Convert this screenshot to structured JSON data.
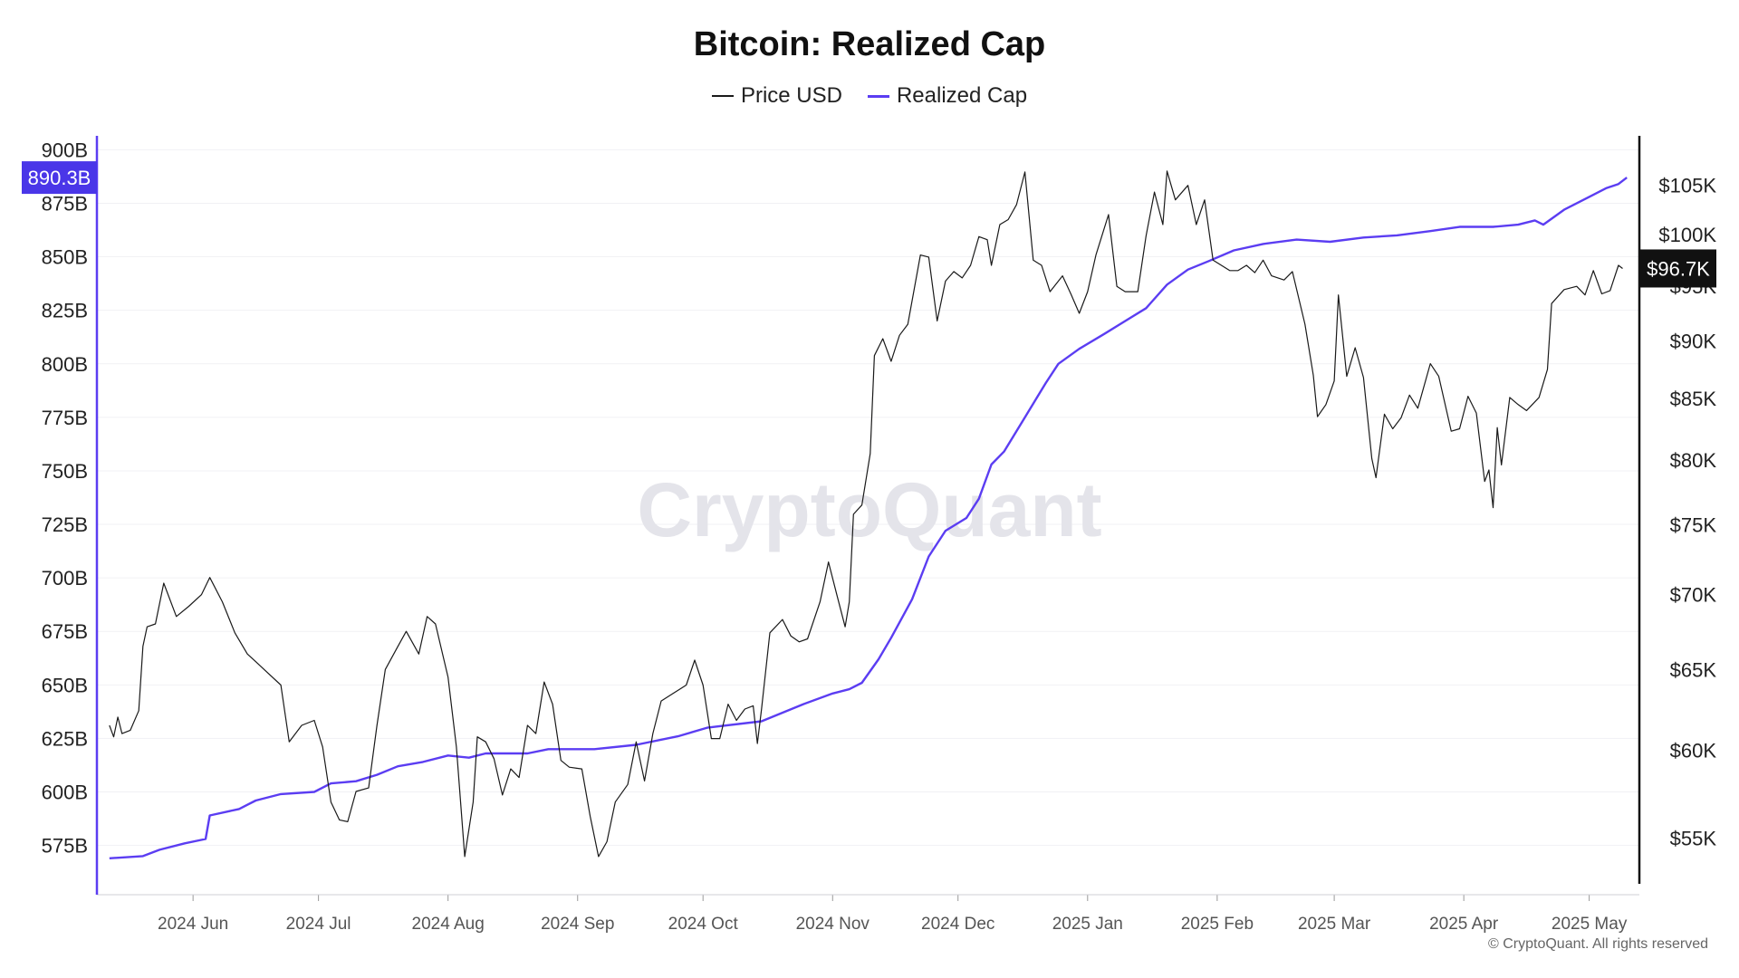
{
  "title": "Bitcoin: Realized Cap",
  "legend": {
    "price_label": "Price USD",
    "cap_label": "Realized Cap"
  },
  "colors": {
    "price": "#1a1a1a",
    "cap": "#5b3df2",
    "cap_badge": "#4a36e8",
    "price_badge": "#111111"
  },
  "watermark": "CryptoQuant",
  "copyright": "© CryptoQuant. All rights reserved",
  "chart_data": {
    "type": "line",
    "title": "Bitcoin: Realized Cap",
    "xlabel": "",
    "x_ticks": [
      "2024 Jun",
      "2024 Jul",
      "2024 Aug",
      "2024 Sep",
      "2024 Oct",
      "2024 Nov",
      "2024 Dec",
      "2025 Jan",
      "2025 Feb",
      "2025 Mar",
      "2025 Apr",
      "2025 May"
    ],
    "left_axis": {
      "ticks": [
        "575B",
        "600B",
        "625B",
        "650B",
        "675B",
        "700B",
        "725B",
        "750B",
        "775B",
        "800B",
        "825B",
        "850B",
        "875B",
        "900B"
      ],
      "min": 552,
      "max": 901
    },
    "right_axis": {
      "ticks": [
        "$55K",
        "$60K",
        "$65K",
        "$70K",
        "$75K",
        "$80K",
        "$85K",
        "$90K",
        "$95K",
        "$100K",
        "$105K"
      ]
    },
    "current_cap_label": "890.3B",
    "current_price_label": "$96.7K",
    "series": [
      {
        "name": "Realized Cap",
        "axis": "left",
        "points": [
          [
            "2024-05-12",
            569
          ],
          [
            "2024-05-20",
            570
          ],
          [
            "2024-05-24",
            573
          ],
          [
            "2024-05-30",
            576
          ],
          [
            "2024-06-04",
            578
          ],
          [
            "2024-06-05",
            589
          ],
          [
            "2024-06-12",
            592
          ],
          [
            "2024-06-16",
            596
          ],
          [
            "2024-06-22",
            599
          ],
          [
            "2024-06-30",
            600
          ],
          [
            "2024-07-04",
            604
          ],
          [
            "2024-07-10",
            605
          ],
          [
            "2024-07-15",
            608
          ],
          [
            "2024-07-20",
            612
          ],
          [
            "2024-07-26",
            614
          ],
          [
            "2024-08-01",
            617
          ],
          [
            "2024-08-06",
            616
          ],
          [
            "2024-08-10",
            618
          ],
          [
            "2024-08-20",
            618
          ],
          [
            "2024-08-25",
            620
          ],
          [
            "2024-09-05",
            620
          ],
          [
            "2024-09-15",
            622
          ],
          [
            "2024-09-25",
            626
          ],
          [
            "2024-10-02",
            630
          ],
          [
            "2024-10-15",
            633
          ],
          [
            "2024-10-25",
            641
          ],
          [
            "2024-11-01",
            646
          ],
          [
            "2024-11-05",
            648
          ],
          [
            "2024-11-08",
            651
          ],
          [
            "2024-11-12",
            662
          ],
          [
            "2024-11-15",
            672
          ],
          [
            "2024-11-20",
            690
          ],
          [
            "2024-11-24",
            710
          ],
          [
            "2024-11-28",
            722
          ],
          [
            "2024-12-03",
            728
          ],
          [
            "2024-12-06",
            737
          ],
          [
            "2024-12-09",
            753
          ],
          [
            "2024-12-12",
            759
          ],
          [
            "2024-12-17",
            775
          ],
          [
            "2024-12-22",
            791
          ],
          [
            "2024-12-25",
            800
          ],
          [
            "2024-12-30",
            807
          ],
          [
            "2025-01-05",
            814
          ],
          [
            "2025-01-10",
            820
          ],
          [
            "2025-01-15",
            826
          ],
          [
            "2025-01-20",
            837
          ],
          [
            "2025-01-25",
            844
          ],
          [
            "2025-01-30",
            848
          ],
          [
            "2025-02-05",
            853
          ],
          [
            "2025-02-12",
            856
          ],
          [
            "2025-02-20",
            858
          ],
          [
            "2025-02-28",
            857
          ],
          [
            "2025-03-08",
            859
          ],
          [
            "2025-03-16",
            860
          ],
          [
            "2025-03-24",
            862
          ],
          [
            "2025-03-31",
            864
          ],
          [
            "2025-04-08",
            864
          ],
          [
            "2025-04-14",
            865
          ],
          [
            "2025-04-18",
            867
          ],
          [
            "2025-04-20",
            865
          ],
          [
            "2025-04-25",
            872
          ],
          [
            "2025-05-01",
            878
          ],
          [
            "2025-05-05",
            882
          ],
          [
            "2025-05-08",
            884
          ],
          [
            "2025-05-10",
            887
          ]
        ]
      },
      {
        "name": "Price USD",
        "axis": "right",
        "points": [
          [
            "2024-05-12",
            61500
          ],
          [
            "2024-05-13",
            60800
          ],
          [
            "2024-05-14",
            62000
          ],
          [
            "2024-05-15",
            61000
          ],
          [
            "2024-05-17",
            61200
          ],
          [
            "2024-05-19",
            62400
          ],
          [
            "2024-05-20",
            66500
          ],
          [
            "2024-05-21",
            67800
          ],
          [
            "2024-05-23",
            68000
          ],
          [
            "2024-05-25",
            70800
          ],
          [
            "2024-05-28",
            68500
          ],
          [
            "2024-05-31",
            69200
          ],
          [
            "2024-06-03",
            70000
          ],
          [
            "2024-06-05",
            71200
          ],
          [
            "2024-06-08",
            69500
          ],
          [
            "2024-06-11",
            67400
          ],
          [
            "2024-06-14",
            66000
          ],
          [
            "2024-06-16",
            65500
          ],
          [
            "2024-06-18",
            65000
          ],
          [
            "2024-06-22",
            64000
          ],
          [
            "2024-06-24",
            60500
          ],
          [
            "2024-06-27",
            61500
          ],
          [
            "2024-06-30",
            61800
          ],
          [
            "2024-07-02",
            60200
          ],
          [
            "2024-07-04",
            57000
          ],
          [
            "2024-07-06",
            56000
          ],
          [
            "2024-07-08",
            55900
          ],
          [
            "2024-07-10",
            57600
          ],
          [
            "2024-07-13",
            57800
          ],
          [
            "2024-07-15",
            61500
          ],
          [
            "2024-07-17",
            65000
          ],
          [
            "2024-07-20",
            66500
          ],
          [
            "2024-07-22",
            67500
          ],
          [
            "2024-07-25",
            66000
          ],
          [
            "2024-07-27",
            68500
          ],
          [
            "2024-07-29",
            68000
          ],
          [
            "2024-08-01",
            64500
          ],
          [
            "2024-08-03",
            60200
          ],
          [
            "2024-08-05",
            54000
          ],
          [
            "2024-08-07",
            57000
          ],
          [
            "2024-08-08",
            60800
          ],
          [
            "2024-08-10",
            60500
          ],
          [
            "2024-08-12",
            59500
          ],
          [
            "2024-08-14",
            57400
          ],
          [
            "2024-08-16",
            58900
          ],
          [
            "2024-08-18",
            58400
          ],
          [
            "2024-08-20",
            61500
          ],
          [
            "2024-08-22",
            61000
          ],
          [
            "2024-08-24",
            64200
          ],
          [
            "2024-08-26",
            62800
          ],
          [
            "2024-08-28",
            59400
          ],
          [
            "2024-08-30",
            59000
          ],
          [
            "2024-09-02",
            58900
          ],
          [
            "2024-09-04",
            56200
          ],
          [
            "2024-09-06",
            54000
          ],
          [
            "2024-09-08",
            54800
          ],
          [
            "2024-09-10",
            57000
          ],
          [
            "2024-09-13",
            58000
          ],
          [
            "2024-09-15",
            60500
          ],
          [
            "2024-09-17",
            58200
          ],
          [
            "2024-09-19",
            61000
          ],
          [
            "2024-09-21",
            63000
          ],
          [
            "2024-09-24",
            63500
          ],
          [
            "2024-09-27",
            64000
          ],
          [
            "2024-09-29",
            65600
          ],
          [
            "2024-10-01",
            64000
          ],
          [
            "2024-10-03",
            60700
          ],
          [
            "2024-10-05",
            60700
          ],
          [
            "2024-10-07",
            62800
          ],
          [
            "2024-10-09",
            61800
          ],
          [
            "2024-10-11",
            62500
          ],
          [
            "2024-10-13",
            62700
          ],
          [
            "2024-10-14",
            60400
          ],
          [
            "2024-10-15",
            62500
          ],
          [
            "2024-10-17",
            67400
          ],
          [
            "2024-10-20",
            68300
          ],
          [
            "2024-10-22",
            67200
          ],
          [
            "2024-10-24",
            66800
          ],
          [
            "2024-10-26",
            67000
          ],
          [
            "2024-10-29",
            69500
          ],
          [
            "2024-10-31",
            72300
          ],
          [
            "2024-11-02",
            70000
          ],
          [
            "2024-11-04",
            67800
          ],
          [
            "2024-11-05",
            69500
          ],
          [
            "2024-11-06",
            75800
          ],
          [
            "2024-11-08",
            76500
          ],
          [
            "2024-11-10",
            80500
          ],
          [
            "2024-11-11",
            88700
          ],
          [
            "2024-11-13",
            90200
          ],
          [
            "2024-11-15",
            88200
          ],
          [
            "2024-11-17",
            90500
          ],
          [
            "2024-11-19",
            91500
          ],
          [
            "2024-11-22",
            98000
          ],
          [
            "2024-11-24",
            97800
          ],
          [
            "2024-11-26",
            91800
          ],
          [
            "2024-11-28",
            95500
          ],
          [
            "2024-11-30",
            96400
          ],
          [
            "2024-12-02",
            95800
          ],
          [
            "2024-12-04",
            97000
          ],
          [
            "2024-12-06",
            99800
          ],
          [
            "2024-12-08",
            99500
          ],
          [
            "2024-12-09",
            97000
          ],
          [
            "2024-12-11",
            101000
          ],
          [
            "2024-12-13",
            101500
          ],
          [
            "2024-12-15",
            103000
          ],
          [
            "2024-12-17",
            106400
          ],
          [
            "2024-12-19",
            97500
          ],
          [
            "2024-12-21",
            97000
          ],
          [
            "2024-12-23",
            94500
          ],
          [
            "2024-12-26",
            96000
          ],
          [
            "2024-12-28",
            94300
          ],
          [
            "2024-12-30",
            92500
          ],
          [
            "2025-01-01",
            94500
          ],
          [
            "2025-01-03",
            98000
          ],
          [
            "2025-01-06",
            102000
          ],
          [
            "2025-01-08",
            95000
          ],
          [
            "2025-01-10",
            94500
          ],
          [
            "2025-01-13",
            94500
          ],
          [
            "2025-01-15",
            99900
          ],
          [
            "2025-01-17",
            104300
          ],
          [
            "2025-01-19",
            101000
          ],
          [
            "2025-01-20",
            106500
          ],
          [
            "2025-01-22",
            103500
          ],
          [
            "2025-01-25",
            105000
          ],
          [
            "2025-01-27",
            101000
          ],
          [
            "2025-01-29",
            103500
          ],
          [
            "2025-01-31",
            97500
          ],
          [
            "2025-02-02",
            97000
          ],
          [
            "2025-02-04",
            96500
          ],
          [
            "2025-02-06",
            96500
          ],
          [
            "2025-02-08",
            97000
          ],
          [
            "2025-02-10",
            96300
          ],
          [
            "2025-02-12",
            97500
          ],
          [
            "2025-02-14",
            96000
          ],
          [
            "2025-02-17",
            95600
          ],
          [
            "2025-02-19",
            96400
          ],
          [
            "2025-02-22",
            91500
          ],
          [
            "2025-02-24",
            87000
          ],
          [
            "2025-02-25",
            83500
          ],
          [
            "2025-02-27",
            84500
          ],
          [
            "2025-03-01",
            86500
          ],
          [
            "2025-03-02",
            94200
          ],
          [
            "2025-03-04",
            86900
          ],
          [
            "2025-03-06",
            89400
          ],
          [
            "2025-03-08",
            86800
          ],
          [
            "2025-03-10",
            80100
          ],
          [
            "2025-03-11",
            78600
          ],
          [
            "2025-03-13",
            83700
          ],
          [
            "2025-03-15",
            82500
          ],
          [
            "2025-03-17",
            83400
          ],
          [
            "2025-03-19",
            85300
          ],
          [
            "2025-03-21",
            84200
          ],
          [
            "2025-03-24",
            88000
          ],
          [
            "2025-03-26",
            86900
          ],
          [
            "2025-03-29",
            82300
          ],
          [
            "2025-03-31",
            82500
          ],
          [
            "2025-04-02",
            85200
          ],
          [
            "2025-04-04",
            83800
          ],
          [
            "2025-04-06",
            78300
          ],
          [
            "2025-04-07",
            79200
          ],
          [
            "2025-04-08",
            76300
          ],
          [
            "2025-04-09",
            82600
          ],
          [
            "2025-04-10",
            79600
          ],
          [
            "2025-04-12",
            85100
          ],
          [
            "2025-04-14",
            84500
          ],
          [
            "2025-04-16",
            84000
          ],
          [
            "2025-04-19",
            85100
          ],
          [
            "2025-04-21",
            87500
          ],
          [
            "2025-04-22",
            93400
          ],
          [
            "2025-04-25",
            94700
          ],
          [
            "2025-04-28",
            95000
          ],
          [
            "2025-04-30",
            94200
          ],
          [
            "2025-05-02",
            96500
          ],
          [
            "2025-05-04",
            94300
          ],
          [
            "2025-05-06",
            94600
          ],
          [
            "2025-05-08",
            97000
          ],
          [
            "2025-05-09",
            96700
          ]
        ]
      }
    ]
  }
}
